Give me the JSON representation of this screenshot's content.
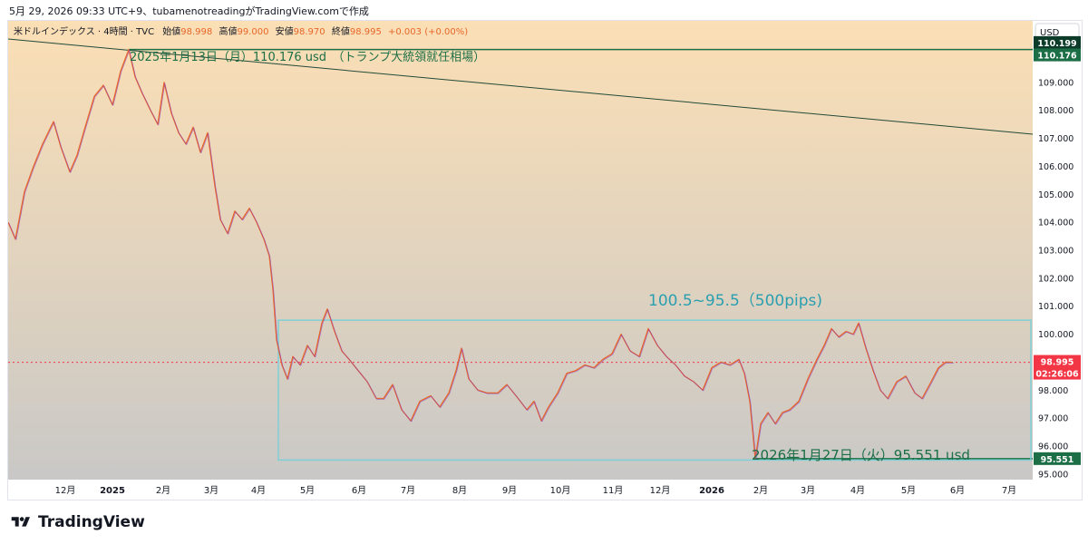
{
  "caption": "5月 29, 2026 09:33 UTC+9、tubamenotreadingがTradingView.comで作成",
  "header": {
    "symbol": "米ドルインデックス · 4時間 · TVC",
    "open_label": "始値",
    "open": "98.998",
    "high_label": "高値",
    "high": "99.000",
    "low_label": "安値",
    "low": "98.970",
    "close_label": "終値",
    "close": "98.995",
    "change": "+0.003 (+0.00%)"
  },
  "currency_button": "USD",
  "brand": "TradingView",
  "colors": {
    "bg_top": "#fbdfb5",
    "bg_bottom": "#c7c7c7",
    "price_line": "#e8662a",
    "price_line_alt": "#8a3fc4",
    "box": "#7ecfd6",
    "box_text": "#2a9fb0",
    "green": "#1b6e45",
    "current": "#f23645",
    "trend": "#224a38"
  },
  "chart_data": {
    "type": "line",
    "title": "米ドルインデックス · 4時間 · TVC",
    "ylim": [
      94.8,
      111.2
    ],
    "y_ticks": [
      "95.000",
      "96.000",
      "97.000",
      "98.000",
      "99.000",
      "100.000",
      "101.000",
      "102.000",
      "103.000",
      "104.000",
      "105.000",
      "106.000",
      "107.000",
      "108.000",
      "109.000",
      "110.000"
    ],
    "x_ticks": [
      "12月",
      "2025",
      "2月",
      "3月",
      "4月",
      "5月",
      "6月",
      "7月",
      "8月",
      "9月",
      "10月",
      "11月",
      "12月",
      "2026",
      "2月",
      "3月",
      "4月",
      "5月",
      "6月",
      "7月"
    ],
    "xlim": [
      0,
      1130
    ],
    "x_tick_positions": [
      63,
      115,
      171,
      224,
      276,
      330,
      387,
      441,
      498,
      553,
      609,
      667,
      719,
      776,
      830,
      882,
      937,
      993,
      1047,
      1104
    ],
    "series": [
      {
        "points": [
          [
            0,
            104.0
          ],
          [
            8,
            103.4
          ],
          [
            18,
            105.1
          ],
          [
            28,
            106.0
          ],
          [
            38,
            106.8
          ],
          [
            50,
            107.6
          ],
          [
            58,
            106.7
          ],
          [
            68,
            105.8
          ],
          [
            76,
            106.4
          ],
          [
            84,
            107.3
          ],
          [
            95,
            108.5
          ],
          [
            105,
            108.9
          ],
          [
            115,
            108.2
          ],
          [
            124,
            109.4
          ],
          [
            133,
            110.176
          ],
          [
            140,
            109.2
          ],
          [
            148,
            108.6
          ],
          [
            157,
            108.0
          ],
          [
            165,
            107.5
          ],
          [
            172,
            109.0
          ],
          [
            180,
            107.9
          ],
          [
            188,
            107.2
          ],
          [
            196,
            106.8
          ],
          [
            204,
            107.4
          ],
          [
            212,
            106.5
          ],
          [
            220,
            107.2
          ],
          [
            228,
            105.3
          ],
          [
            234,
            104.1
          ],
          [
            242,
            103.6
          ],
          [
            250,
            104.4
          ],
          [
            258,
            104.1
          ],
          [
            266,
            104.5
          ],
          [
            274,
            104.0
          ],
          [
            282,
            103.4
          ],
          [
            288,
            102.8
          ],
          [
            292,
            101.6
          ],
          [
            296,
            99.8
          ],
          [
            302,
            98.9
          ],
          [
            308,
            98.4
          ],
          [
            314,
            99.2
          ],
          [
            322,
            98.9
          ],
          [
            330,
            99.6
          ],
          [
            338,
            99.2
          ],
          [
            346,
            100.4
          ],
          [
            352,
            100.9
          ],
          [
            360,
            100.1
          ],
          [
            368,
            99.4
          ],
          [
            376,
            99.1
          ],
          [
            386,
            98.7
          ],
          [
            396,
            98.3
          ],
          [
            406,
            97.7
          ],
          [
            414,
            97.7
          ],
          [
            424,
            98.2
          ],
          [
            434,
            97.3
          ],
          [
            444,
            96.9
          ],
          [
            454,
            97.6
          ],
          [
            466,
            97.8
          ],
          [
            476,
            97.4
          ],
          [
            486,
            97.9
          ],
          [
            494,
            98.7
          ],
          [
            500,
            99.5
          ],
          [
            508,
            98.4
          ],
          [
            518,
            98.0
          ],
          [
            528,
            97.9
          ],
          [
            540,
            97.9
          ],
          [
            550,
            98.2
          ],
          [
            560,
            97.8
          ],
          [
            572,
            97.3
          ],
          [
            580,
            97.6
          ],
          [
            588,
            96.9
          ],
          [
            596,
            97.4
          ],
          [
            606,
            97.9
          ],
          [
            616,
            98.6
          ],
          [
            626,
            98.7
          ],
          [
            636,
            98.9
          ],
          [
            646,
            98.8
          ],
          [
            656,
            99.1
          ],
          [
            666,
            99.3
          ],
          [
            676,
            100.0
          ],
          [
            686,
            99.4
          ],
          [
            696,
            99.2
          ],
          [
            706,
            100.2
          ],
          [
            716,
            99.6
          ],
          [
            726,
            99.2
          ],
          [
            736,
            98.9
          ],
          [
            746,
            98.5
          ],
          [
            756,
            98.3
          ],
          [
            766,
            98.0
          ],
          [
            776,
            98.8
          ],
          [
            786,
            99.0
          ],
          [
            796,
            98.9
          ],
          [
            806,
            99.1
          ],
          [
            812,
            98.6
          ],
          [
            818,
            97.6
          ],
          [
            824,
            95.551
          ],
          [
            830,
            96.8
          ],
          [
            838,
            97.2
          ],
          [
            846,
            96.8
          ],
          [
            854,
            97.2
          ],
          [
            862,
            97.3
          ],
          [
            872,
            97.6
          ],
          [
            882,
            98.4
          ],
          [
            892,
            99.1
          ],
          [
            900,
            99.6
          ],
          [
            908,
            100.2
          ],
          [
            916,
            99.9
          ],
          [
            924,
            100.1
          ],
          [
            932,
            100.0
          ],
          [
            938,
            100.4
          ],
          [
            946,
            99.5
          ],
          [
            954,
            98.7
          ],
          [
            962,
            98.0
          ],
          [
            970,
            97.7
          ],
          [
            980,
            98.3
          ],
          [
            990,
            98.5
          ],
          [
            1000,
            97.9
          ],
          [
            1008,
            97.7
          ],
          [
            1018,
            98.3
          ],
          [
            1026,
            98.8
          ],
          [
            1034,
            99.0
          ],
          [
            1042,
            98.995
          ]
        ]
      }
    ]
  },
  "annotations": {
    "top_label": "2025年1月13日（月）110.176 usd　（トランプ大統領就任相場）",
    "range_label": "100.5~95.5（500pips)",
    "bottom_label": "2026年1月27日（火）95.551 usd",
    "tag_top1": "110.199",
    "tag_top2": "110.176",
    "tag_current": "98.995",
    "tag_countdown": "02:26:06",
    "tag_bottom": "95.551",
    "box_top": 100.5,
    "box_bottom": 95.5,
    "box_x_start": 298,
    "box_x_end": 1136,
    "hline_top": 110.176,
    "hline_bottom": 95.551,
    "trend_start": [
      0,
      110.55
    ],
    "trend_end": [
      1130,
      107.15
    ]
  }
}
